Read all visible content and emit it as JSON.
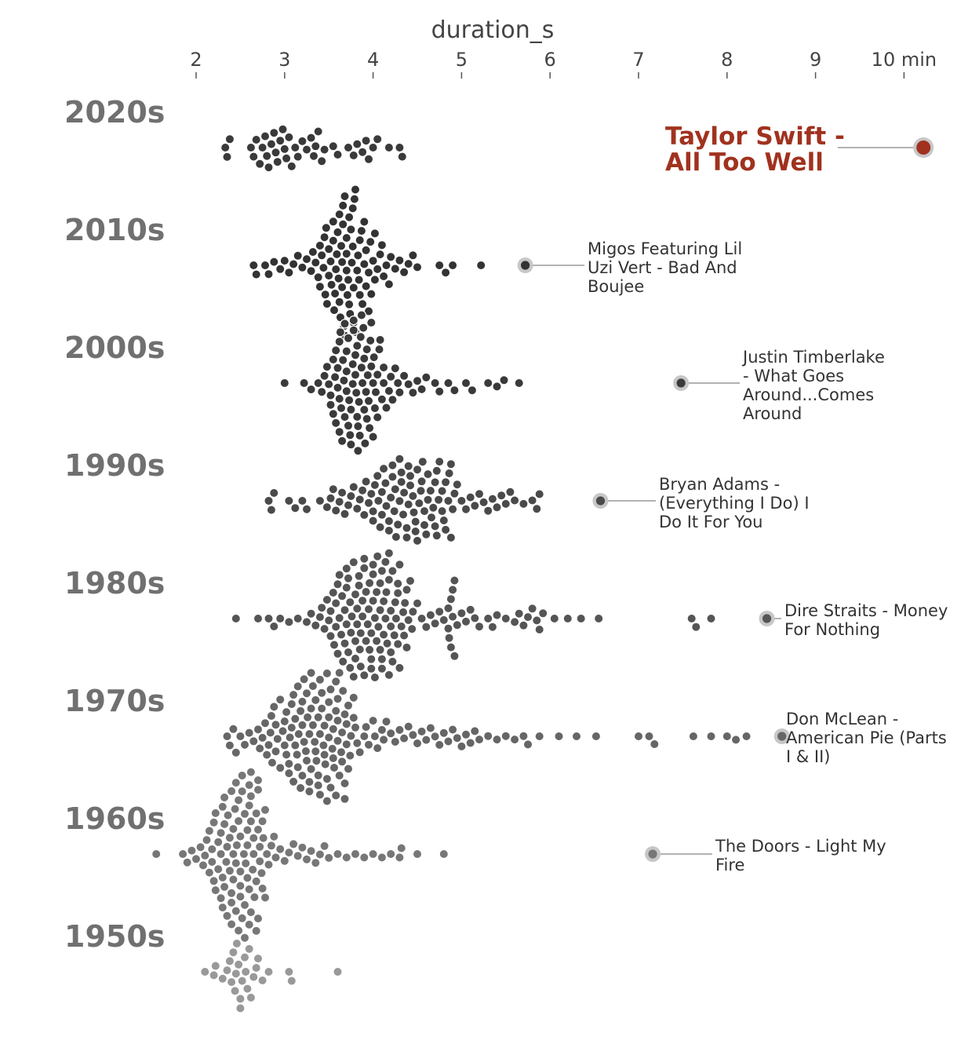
{
  "chart_data": {
    "type": "scatter",
    "subtype": "beeswarm",
    "xlabel": "duration_s",
    "x_scale": "linear",
    "xlim": [
      1.55,
      10.6
    ],
    "ticks": [
      {
        "value": 2,
        "label": "2"
      },
      {
        "value": 3,
        "label": "3"
      },
      {
        "value": 4,
        "label": "4"
      },
      {
        "value": 5,
        "label": "5"
      },
      {
        "value": 6,
        "label": "6"
      },
      {
        "value": 7,
        "label": "7"
      },
      {
        "value": 8,
        "label": "8"
      },
      {
        "value": 9,
        "label": "9"
      },
      {
        "value": 10,
        "label": "10 min"
      }
    ],
    "grid": false,
    "legend": "none",
    "highlight_color": "#a0321e",
    "decades": [
      {
        "label": "2020s",
        "color": "#3a3a3a",
        "values": [
          2.33,
          2.35,
          2.38,
          2.62,
          2.65,
          2.68,
          2.72,
          2.75,
          2.78,
          2.8,
          2.82,
          2.85,
          2.88,
          2.9,
          2.92,
          2.95,
          2.98,
          3.0,
          3.02,
          3.05,
          3.08,
          3.12,
          3.15,
          3.2,
          3.25,
          3.3,
          3.33,
          3.35,
          3.38,
          3.42,
          3.45,
          3.55,
          3.6,
          3.72,
          3.78,
          3.82,
          3.88,
          3.92,
          3.95,
          4.0,
          4.05,
          4.18,
          4.3,
          4.33
        ],
        "outlier": {
          "label": "Taylor Swift - All Too Well",
          "value": 10.22,
          "highlight": true
        }
      },
      {
        "label": "2010s",
        "color": "#333333",
        "values": [
          2.65,
          2.68,
          2.78,
          2.82,
          2.88,
          2.95,
          3.0,
          3.05,
          3.1,
          3.15,
          3.2,
          3.25,
          3.3,
          3.32,
          3.35,
          3.38,
          3.4,
          3.42,
          3.45,
          3.47,
          3.5,
          3.52,
          3.55,
          3.57,
          3.6,
          3.62,
          3.63,
          3.65,
          3.66,
          3.68,
          3.7,
          3.72,
          3.73,
          3.75,
          3.77,
          3.78,
          3.8,
          3.82,
          3.85,
          3.87,
          3.9,
          3.92,
          3.95,
          3.97,
          4.0,
          4.02,
          4.05,
          4.08,
          4.1,
          4.12,
          4.15,
          4.18,
          4.2,
          4.25,
          4.3,
          4.35,
          4.4,
          4.45,
          4.5,
          4.75,
          4.82,
          4.9,
          5.22,
          3.48,
          3.58,
          3.64,
          3.7,
          3.76,
          3.84,
          3.9,
          3.55,
          3.67,
          3.79,
          3.61,
          3.73,
          3.5,
          3.85,
          3.65,
          3.77,
          3.59,
          3.71,
          3.83,
          3.53,
          3.95,
          3.46,
          3.88,
          3.44,
          3.98,
          3.68,
          3.62,
          3.74,
          3.56,
          3.8,
          3.92,
          3.4,
          4.02,
          3.7,
          3.66,
          3.78
        ],
        "outlier": {
          "label": "Migos Featuring Lil Uzi Vert - Bad And Boujee",
          "value": 5.72
        }
      },
      {
        "label": "2000s",
        "color": "#3a3a3a",
        "values": [
          3.0,
          3.22,
          3.3,
          3.38,
          3.42,
          3.45,
          3.48,
          3.5,
          3.52,
          3.55,
          3.57,
          3.58,
          3.6,
          3.62,
          3.63,
          3.65,
          3.67,
          3.68,
          3.7,
          3.72,
          3.73,
          3.75,
          3.77,
          3.78,
          3.8,
          3.82,
          3.83,
          3.85,
          3.87,
          3.88,
          3.9,
          3.92,
          3.93,
          3.95,
          3.97,
          3.98,
          4.0,
          4.02,
          4.05,
          4.07,
          4.1,
          4.12,
          4.15,
          4.18,
          4.2,
          4.22,
          4.25,
          4.28,
          4.3,
          4.35,
          4.4,
          4.45,
          4.5,
          4.55,
          4.6,
          4.7,
          4.75,
          4.85,
          4.92,
          5.05,
          5.12,
          5.3,
          5.4,
          5.48,
          5.65,
          3.55,
          3.62,
          3.7,
          3.77,
          3.84,
          3.91,
          3.98,
          4.05,
          3.6,
          3.68,
          3.75,
          3.82,
          3.89,
          3.96,
          4.03,
          3.64,
          3.72,
          3.8,
          3.87,
          3.94,
          4.01,
          3.58,
          3.66,
          3.74,
          3.81,
          3.9,
          4.08,
          3.52,
          3.7,
          3.86,
          3.78,
          3.93,
          4.12,
          3.62,
          3.83,
          4.0
        ],
        "outlier": {
          "label": "Justin Timberlake - What Goes Around...Comes Around",
          "value": 7.48
        }
      },
      {
        "label": "1990s",
        "color": "#4a4a4a",
        "values": [
          2.82,
          2.85,
          2.88,
          3.05,
          3.12,
          3.2,
          3.25,
          3.4,
          3.48,
          3.52,
          3.55,
          3.58,
          3.62,
          3.65,
          3.68,
          3.72,
          3.75,
          3.78,
          3.82,
          3.85,
          3.88,
          3.92,
          3.95,
          3.98,
          4.0,
          4.02,
          4.05,
          4.08,
          4.1,
          4.12,
          4.15,
          4.18,
          4.2,
          4.22,
          4.25,
          4.28,
          4.3,
          4.32,
          4.35,
          4.38,
          4.4,
          4.42,
          4.45,
          4.48,
          4.5,
          4.52,
          4.55,
          4.58,
          4.6,
          4.62,
          4.65,
          4.68,
          4.7,
          4.72,
          4.75,
          4.78,
          4.8,
          4.82,
          4.85,
          4.88,
          4.9,
          4.92,
          4.95,
          5.0,
          5.05,
          5.1,
          5.15,
          5.2,
          5.25,
          5.3,
          5.35,
          5.4,
          5.45,
          5.5,
          5.55,
          5.6,
          5.7,
          5.8,
          5.85,
          5.88,
          4.1,
          4.22,
          4.34,
          4.46,
          4.58,
          4.7,
          4.82,
          4.0,
          4.14,
          4.26,
          4.38,
          4.5,
          4.62,
          4.74,
          4.86,
          4.18,
          4.3,
          4.42,
          4.54,
          4.66,
          4.78,
          3.9,
          4.06,
          4.24,
          4.4,
          4.56,
          4.72,
          4.88,
          4.32,
          4.48
        ],
        "outlier": {
          "label": "Bryan Adams - (Everything I Do) I Do It For You",
          "value": 6.57
        }
      },
      {
        "label": "1980s",
        "color": "#555555",
        "values": [
          2.45,
          2.7,
          2.82,
          2.88,
          2.95,
          3.05,
          3.15,
          3.25,
          3.3,
          3.35,
          3.4,
          3.42,
          3.45,
          3.48,
          3.5,
          3.52,
          3.55,
          3.58,
          3.6,
          3.62,
          3.65,
          3.68,
          3.7,
          3.72,
          3.75,
          3.78,
          3.8,
          3.82,
          3.85,
          3.88,
          3.9,
          3.92,
          3.95,
          3.98,
          4.0,
          4.02,
          4.05,
          4.08,
          4.1,
          4.12,
          4.15,
          4.18,
          4.2,
          4.22,
          4.25,
          4.28,
          4.3,
          4.32,
          4.35,
          4.38,
          4.4,
          4.42,
          4.45,
          4.5,
          4.55,
          4.6,
          4.65,
          4.7,
          4.75,
          4.8,
          4.85,
          4.88,
          4.9,
          4.92,
          4.95,
          5.0,
          5.05,
          5.1,
          5.15,
          5.2,
          5.3,
          5.35,
          5.4,
          5.5,
          5.6,
          5.65,
          5.7,
          5.75,
          5.8,
          5.85,
          5.88,
          5.92,
          6.05,
          6.2,
          6.35,
          6.55,
          7.6,
          7.65,
          7.82,
          3.7,
          3.8,
          3.9,
          4.0,
          4.1,
          4.2,
          4.3,
          3.62,
          3.74,
          3.86,
          3.98,
          4.08,
          4.18,
          4.28,
          3.66,
          3.78,
          3.94,
          4.04,
          4.14,
          4.24,
          3.58,
          3.72,
          3.84,
          3.96,
          4.06,
          4.16,
          4.26,
          3.88,
          4.02,
          4.12,
          4.9,
          4.88,
          4.92,
          4.86,
          4.85,
          3.76,
          3.92,
          4.22,
          4.34,
          3.68,
          3.82,
          4.0,
          4.1,
          4.2,
          3.6,
          3.74,
          3.86,
          3.98,
          4.08,
          4.18,
          3.64,
          3.8,
          3.9,
          4.04,
          4.14,
          3.7,
          3.84,
          3.96,
          4.28,
          4.38,
          3.52,
          4.44,
          3.56,
          4.36
        ],
        "outlier": {
          "label": "Dire Straits - Money For Nothing",
          "value": 8.45
        }
      },
      {
        "label": "1970s",
        "color": "#666666",
        "values": [
          2.35,
          2.38,
          2.42,
          2.45,
          2.5,
          2.55,
          2.6,
          2.65,
          2.7,
          2.72,
          2.75,
          2.78,
          2.8,
          2.82,
          2.85,
          2.88,
          2.9,
          2.92,
          2.95,
          2.98,
          3.0,
          3.02,
          3.05,
          3.08,
          3.1,
          3.12,
          3.15,
          3.18,
          3.2,
          3.22,
          3.25,
          3.28,
          3.3,
          3.32,
          3.35,
          3.38,
          3.4,
          3.42,
          3.45,
          3.48,
          3.5,
          3.52,
          3.55,
          3.58,
          3.6,
          3.62,
          3.65,
          3.68,
          3.7,
          3.72,
          3.75,
          3.78,
          3.8,
          3.85,
          3.9,
          3.95,
          4.0,
          4.05,
          4.1,
          4.15,
          4.2,
          4.25,
          4.3,
          4.35,
          4.4,
          4.45,
          4.5,
          4.55,
          4.6,
          4.65,
          4.7,
          4.75,
          4.8,
          4.85,
          4.9,
          4.95,
          5.0,
          5.05,
          5.1,
          5.15,
          5.2,
          5.3,
          5.4,
          5.5,
          5.6,
          5.7,
          5.75,
          5.88,
          6.1,
          6.3,
          6.52,
          7.0,
          7.12,
          7.18,
          7.62,
          7.82,
          8.0,
          8.1,
          8.22,
          3.0,
          3.1,
          3.2,
          3.3,
          3.4,
          3.5,
          3.6,
          3.7,
          2.9,
          3.05,
          3.15,
          3.25,
          3.35,
          3.45,
          3.55,
          3.65,
          2.95,
          3.12,
          3.22,
          3.32,
          3.42,
          3.52,
          3.62,
          3.72,
          3.08,
          3.18,
          3.28,
          3.38,
          3.48,
          3.58,
          3.68,
          3.02,
          3.14,
          3.26,
          3.36,
          3.46,
          3.56,
          3.66,
          3.2,
          3.3,
          3.4,
          3.5,
          3.6,
          3.44,
          3.34,
          3.54,
          3.64,
          3.24,
          3.74,
          3.16,
          3.82,
          2.86,
          3.92,
          2.84,
          4.02,
          3.06,
          4.12,
          3.28,
          3.48,
          3.68,
          3.38,
          3.58,
          3.78
        ],
        "outlier": {
          "label": "Don McLean - American Pie (Parts I & II)",
          "value": 8.62
        }
      },
      {
        "label": "1960s",
        "color": "#777777",
        "values": [
          1.55,
          1.85,
          1.9,
          1.95,
          2.0,
          2.05,
          2.08,
          2.1,
          2.12,
          2.15,
          2.18,
          2.2,
          2.22,
          2.25,
          2.28,
          2.3,
          2.32,
          2.35,
          2.38,
          2.4,
          2.42,
          2.45,
          2.48,
          2.5,
          2.52,
          2.55,
          2.58,
          2.6,
          2.62,
          2.65,
          2.68,
          2.7,
          2.72,
          2.75,
          2.78,
          2.8,
          2.82,
          2.85,
          2.88,
          2.9,
          2.95,
          3.0,
          3.05,
          3.1,
          3.15,
          3.2,
          3.25,
          3.3,
          3.35,
          3.4,
          3.45,
          3.5,
          3.6,
          3.7,
          3.8,
          3.9,
          4.0,
          4.1,
          4.2,
          4.3,
          4.32,
          4.5,
          4.8,
          7.12,
          2.2,
          2.3,
          2.4,
          2.5,
          2.6,
          2.7,
          2.25,
          2.35,
          2.45,
          2.55,
          2.65,
          2.75,
          2.15,
          2.28,
          2.38,
          2.48,
          2.58,
          2.68,
          2.22,
          2.32,
          2.42,
          2.52,
          2.62,
          2.72,
          2.3,
          2.4,
          2.5,
          2.6,
          2.45,
          2.55,
          2.5,
          2.62,
          2.7,
          2.74,
          2.78,
          2.36,
          2.44,
          2.56,
          2.64,
          2.34,
          2.48,
          2.6,
          2.7,
          2.42,
          2.52,
          2.66,
          2.58,
          2.76,
          2.18,
          2.28,
          2.4,
          2.54,
          2.62,
          2.68,
          2.32,
          2.46
        ],
        "outlier": {
          "label": "The Doors - Light My Fire",
          "value": 7.16
        }
      },
      {
        "label": "1950s",
        "color": "#999999",
        "values": [
          2.1,
          2.2,
          2.22,
          2.35,
          2.4,
          2.42,
          2.45,
          2.48,
          2.5,
          2.52,
          2.55,
          2.6,
          2.65,
          2.7,
          2.75,
          2.82,
          3.05,
          3.08,
          3.6,
          2.38,
          2.46,
          2.58,
          2.44,
          2.56,
          2.62,
          2.5,
          2.3,
          2.68
        ]
      }
    ]
  }
}
